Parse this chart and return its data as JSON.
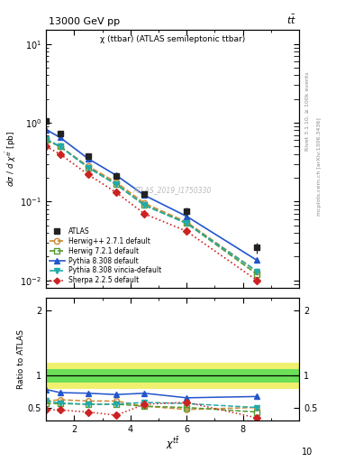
{
  "title_top": "13000 GeV pp",
  "title_top_right": "tt",
  "inner_title": "χ (ttbar) (ATLAS semileptonic ttbar)",
  "watermark": "ATLAS_2019_I1750330",
  "ylabel_ratio": "Ratio to ATLAS",
  "right_label": "Rivet 3.1.10, ≥ 100k events",
  "right_label2": "mcplots.cern.ch [arXiv:1306.3436]",
  "chi_centers": [
    1.0,
    1.5,
    2.5,
    3.5,
    4.5,
    6.0,
    8.5
  ],
  "atlas_y": [
    1.05,
    0.72,
    0.38,
    0.21,
    0.125,
    0.075,
    0.026
  ],
  "atlas_yerr": [
    0.08,
    0.05,
    0.02,
    0.015,
    0.01,
    0.008,
    0.004
  ],
  "herwig271_y": [
    0.62,
    0.5,
    0.28,
    0.175,
    0.095,
    0.055,
    0.013
  ],
  "herwig721_y": [
    0.6,
    0.5,
    0.27,
    0.165,
    0.09,
    0.053,
    0.012
  ],
  "pythia8308_y": [
    0.82,
    0.65,
    0.35,
    0.215,
    0.12,
    0.065,
    0.018
  ],
  "pythia8308v_y": [
    0.62,
    0.5,
    0.27,
    0.165,
    0.09,
    0.053,
    0.013
  ],
  "sherpa225_y": [
    0.5,
    0.4,
    0.22,
    0.13,
    0.07,
    0.042,
    0.01
  ],
  "ratio_herwig271": [
    0.6,
    0.62,
    0.6,
    0.6,
    0.52,
    0.47,
    0.5
  ],
  "ratio_herwig721": [
    0.56,
    0.56,
    0.55,
    0.55,
    0.52,
    0.5,
    0.43
  ],
  "ratio_pythia8308": [
    0.78,
    0.73,
    0.72,
    0.7,
    0.72,
    0.65,
    0.67
  ],
  "ratio_pythia8308v": [
    0.6,
    0.57,
    0.55,
    0.55,
    0.58,
    0.56,
    0.5
  ],
  "ratio_sherpa225": [
    0.47,
    0.46,
    0.43,
    0.38,
    0.55,
    0.58,
    0.34
  ],
  "green_band_lo": 0.89,
  "green_band_hi": 1.1,
  "yellow_band_lo": 0.79,
  "yellow_band_hi": 1.19,
  "xlim": [
    1,
    10
  ],
  "ylim_main": [
    0.008,
    15
  ],
  "ylim_ratio": [
    0.3,
    2.2
  ],
  "color_atlas": "#222222",
  "color_herwig271": "#cc8833",
  "color_herwig721": "#559933",
  "color_pythia8308": "#2255cc",
  "color_pythia8308v": "#22aaaa",
  "color_sherpa225": "#cc2222"
}
